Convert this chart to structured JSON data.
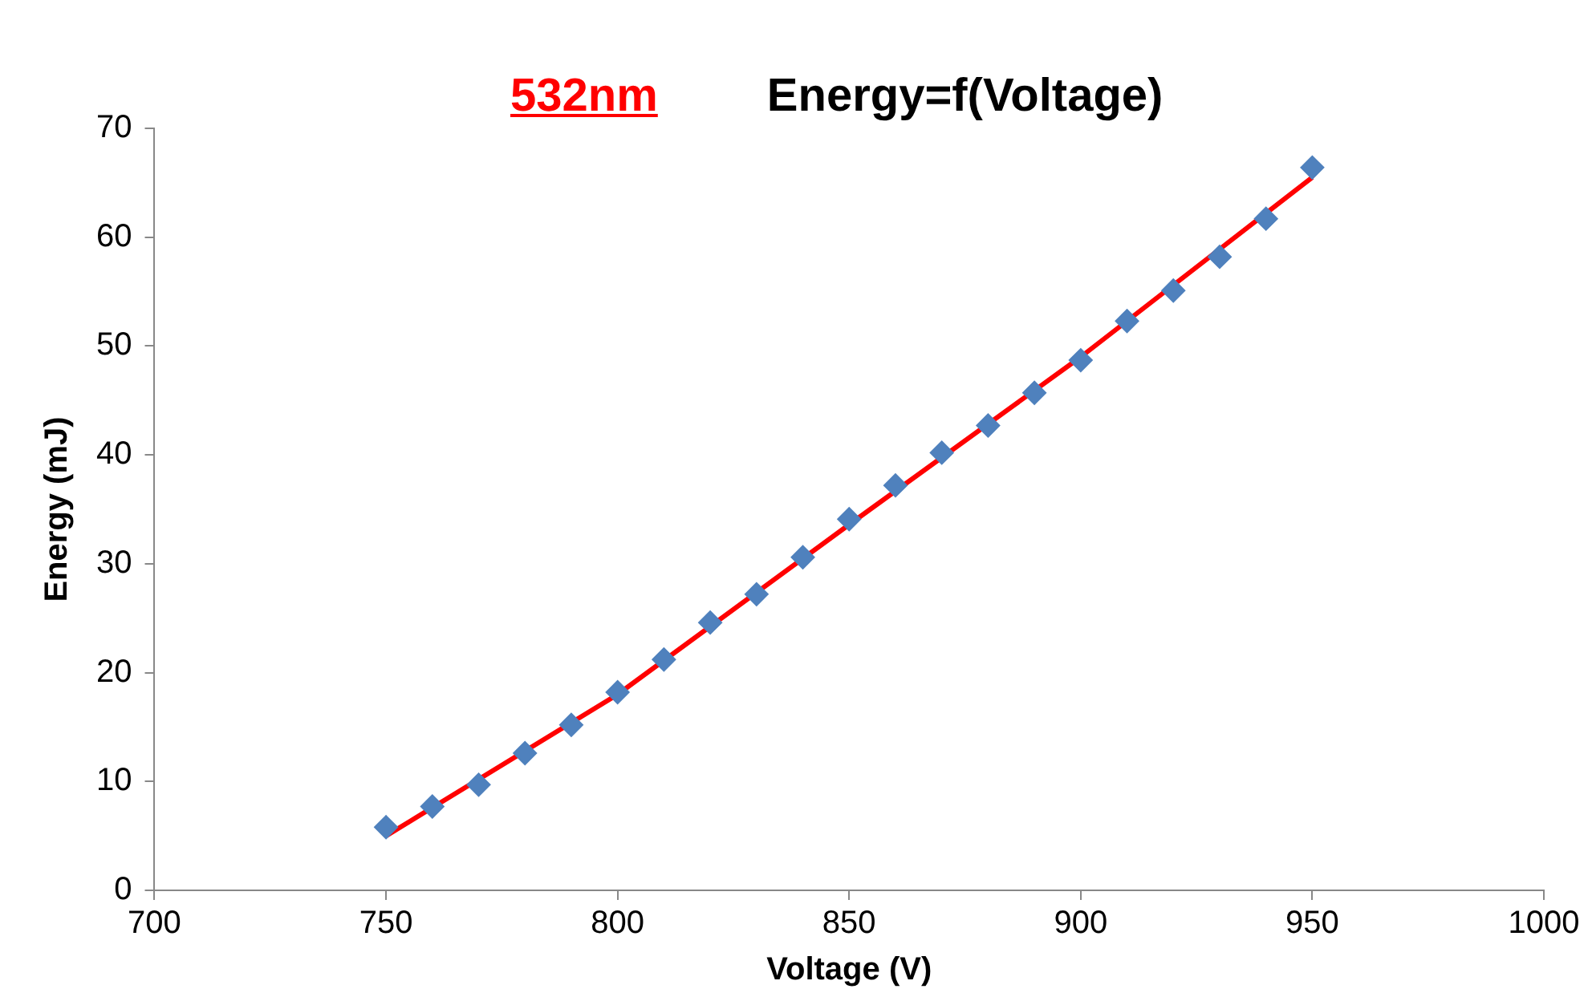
{
  "chart_data": {
    "type": "scatter",
    "title": "Energy=f(Voltage)",
    "annotations": [
      "532nm"
    ],
    "xlabel": "Voltage (V)",
    "ylabel": "Energy (mJ)",
    "xlim": [
      700,
      1000
    ],
    "xticks": [
      700,
      750,
      800,
      850,
      900,
      950,
      1000
    ],
    "ylim": [
      0,
      70
    ],
    "yticks": [
      0,
      10,
      20,
      30,
      40,
      50,
      60,
      70
    ],
    "series": [
      {
        "color": "#4f81bd",
        "marker": "diamond",
        "x": [
          750,
          760,
          770,
          780,
          790,
          800,
          810,
          820,
          830,
          840,
          850,
          860,
          870,
          880,
          890,
          900,
          910,
          920,
          930,
          940,
          950
        ],
        "values": [
          5.8,
          7.7,
          9.7,
          12.6,
          15.2,
          18.2,
          21.2,
          24.6,
          27.2,
          30.6,
          34.1,
          37.2,
          40.2,
          42.7,
          45.7,
          48.7,
          52.3,
          55.1,
          58.2,
          61.7,
          66.4
        ]
      },
      {
        "type": "line",
        "color": "#ff0000",
        "marker": "none",
        "x": [
          750,
          800,
          850,
          900,
          950
        ],
        "values": [
          5.0,
          18.0,
          33.6,
          49.0,
          65.5
        ]
      }
    ]
  }
}
